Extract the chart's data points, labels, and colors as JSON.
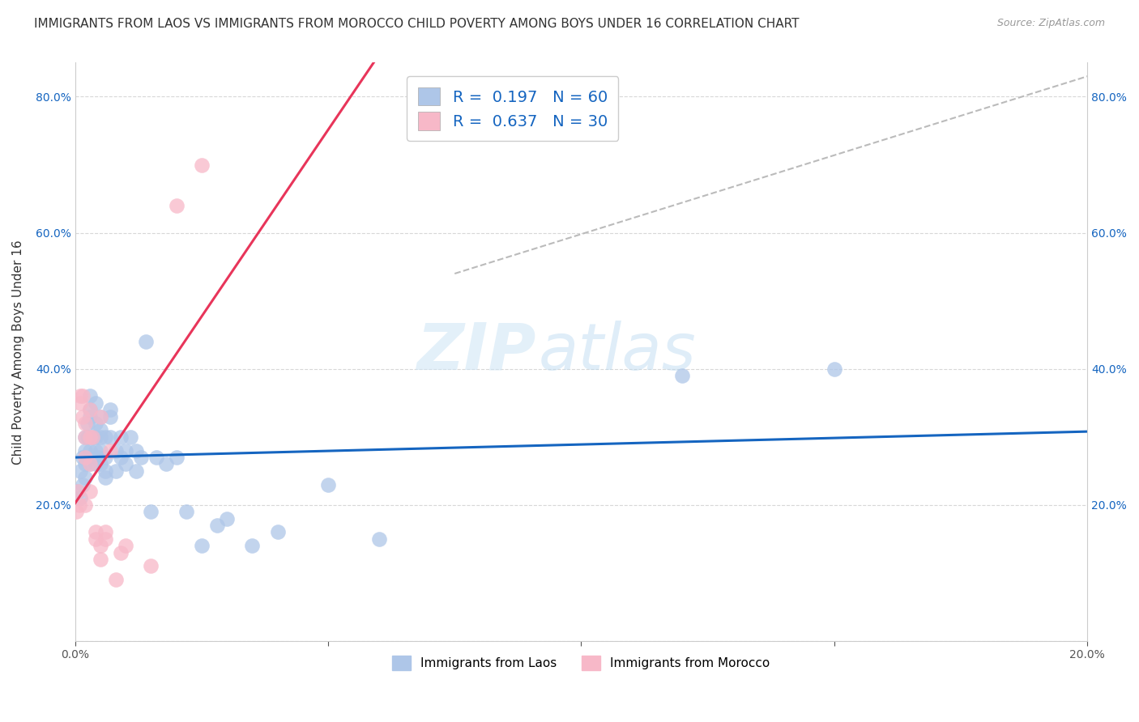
{
  "title": "IMMIGRANTS FROM LAOS VS IMMIGRANTS FROM MOROCCO CHILD POVERTY AMONG BOYS UNDER 16 CORRELATION CHART",
  "source": "Source: ZipAtlas.com",
  "ylabel": "Child Poverty Among Boys Under 16",
  "xmin": 0.0,
  "xmax": 0.2,
  "ymin": 0.0,
  "ymax": 0.85,
  "series": [
    {
      "label": "Immigrants from Laos",
      "R": 0.197,
      "N": 60,
      "color": "#aec6e8",
      "trend_color": "#1565c0",
      "x": [
        0.0005,
        0.001,
        0.001,
        0.0015,
        0.0015,
        0.002,
        0.002,
        0.002,
        0.002,
        0.0025,
        0.0025,
        0.003,
        0.003,
        0.003,
        0.003,
        0.003,
        0.0035,
        0.004,
        0.004,
        0.004,
        0.004,
        0.004,
        0.0045,
        0.005,
        0.005,
        0.005,
        0.005,
        0.005,
        0.006,
        0.006,
        0.006,
        0.006,
        0.007,
        0.007,
        0.007,
        0.008,
        0.008,
        0.009,
        0.009,
        0.01,
        0.01,
        0.011,
        0.012,
        0.012,
        0.013,
        0.014,
        0.015,
        0.016,
        0.018,
        0.02,
        0.022,
        0.025,
        0.028,
        0.03,
        0.035,
        0.04,
        0.05,
        0.06,
        0.12,
        0.15
      ],
      "y": [
        0.22,
        0.25,
        0.21,
        0.27,
        0.23,
        0.28,
        0.3,
        0.24,
        0.26,
        0.32,
        0.3,
        0.34,
        0.28,
        0.33,
        0.36,
        0.26,
        0.3,
        0.28,
        0.32,
        0.35,
        0.26,
        0.3,
        0.27,
        0.28,
        0.33,
        0.3,
        0.26,
        0.31,
        0.25,
        0.3,
        0.27,
        0.24,
        0.33,
        0.3,
        0.34,
        0.28,
        0.25,
        0.3,
        0.27,
        0.26,
        0.28,
        0.3,
        0.25,
        0.28,
        0.27,
        0.44,
        0.19,
        0.27,
        0.26,
        0.27,
        0.19,
        0.14,
        0.17,
        0.18,
        0.14,
        0.16,
        0.23,
        0.15,
        0.39,
        0.4
      ]
    },
    {
      "label": "Immigrants from Morocco",
      "R": 0.637,
      "N": 30,
      "color": "#f7b8c8",
      "trend_color": "#e8355a",
      "x": [
        0.0003,
        0.0005,
        0.0008,
        0.001,
        0.001,
        0.0015,
        0.0015,
        0.002,
        0.002,
        0.002,
        0.002,
        0.003,
        0.003,
        0.003,
        0.003,
        0.0035,
        0.004,
        0.004,
        0.005,
        0.005,
        0.005,
        0.006,
        0.006,
        0.007,
        0.008,
        0.009,
        0.01,
        0.015,
        0.02,
        0.025
      ],
      "y": [
        0.19,
        0.22,
        0.2,
        0.36,
        0.35,
        0.36,
        0.33,
        0.3,
        0.27,
        0.32,
        0.2,
        0.34,
        0.22,
        0.3,
        0.26,
        0.3,
        0.16,
        0.15,
        0.33,
        0.14,
        0.12,
        0.15,
        0.16,
        0.28,
        0.09,
        0.13,
        0.14,
        0.11,
        0.64,
        0.7
      ]
    }
  ],
  "xtick_labels": [
    "0.0%",
    "",
    "",
    "",
    "20.0%"
  ],
  "xtick_values": [
    0.0,
    0.05,
    0.1,
    0.15,
    0.2
  ],
  "ytick_values": [
    0.0,
    0.2,
    0.4,
    0.6,
    0.8
  ],
  "ytick_labels": [
    "",
    "20.0%",
    "40.0%",
    "60.0%",
    "80.0%"
  ],
  "ref_line_x": [
    0.075,
    0.2
  ],
  "ref_line_y": [
    0.54,
    0.83
  ],
  "watermark_zip": "ZIP",
  "watermark_atlas": "atlas",
  "background_color": "#ffffff",
  "grid_color": "#d8d8d8",
  "title_fontsize": 11,
  "axis_fontsize": 11,
  "tick_fontsize": 10,
  "legend_fontsize": 14
}
